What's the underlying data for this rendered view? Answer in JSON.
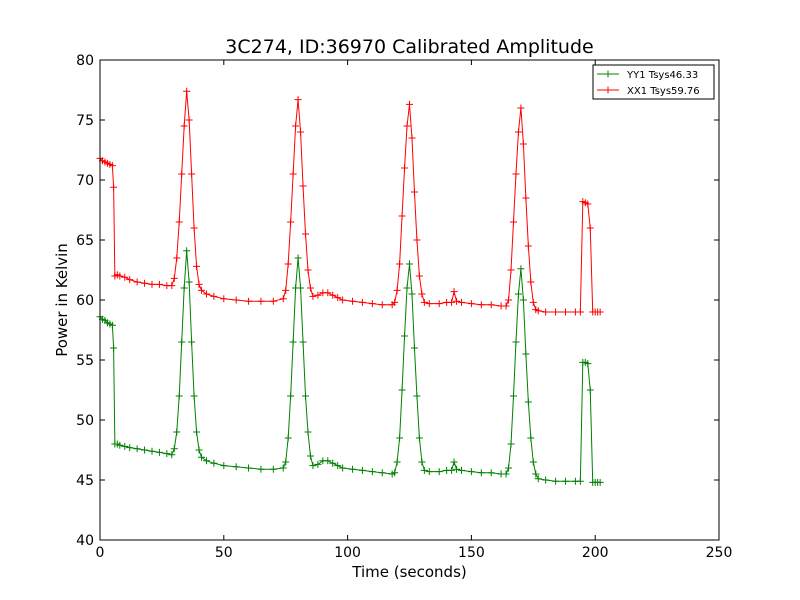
{
  "chart_data": {
    "type": "line",
    "title": "3C274, ID:36970 Calibrated Amplitude",
    "xlabel": "Time (seconds)",
    "ylabel": "Power in Kelvin",
    "xlim": [
      0,
      250
    ],
    "ylim": [
      40,
      80
    ],
    "xticks": [
      0,
      50,
      100,
      150,
      200,
      250
    ],
    "yticks": [
      40,
      45,
      50,
      55,
      60,
      65,
      70,
      75,
      80
    ],
    "grid": false,
    "marker": "+",
    "legend_position": "top-right",
    "series": [
      {
        "name": "YY1 Tsys46.33",
        "color": "#008000",
        "points": [
          [
            0,
            58.6
          ],
          [
            1,
            58.4
          ],
          [
            2,
            58.3
          ],
          [
            3,
            58.1
          ],
          [
            4,
            58.0
          ],
          [
            5,
            57.9
          ],
          [
            5.5,
            56.0
          ],
          [
            6,
            48.0
          ],
          [
            7,
            48.0
          ],
          [
            8,
            47.9
          ],
          [
            10,
            47.8
          ],
          [
            12,
            47.7
          ],
          [
            15,
            47.6
          ],
          [
            18,
            47.5
          ],
          [
            21,
            47.4
          ],
          [
            24,
            47.3
          ],
          [
            27,
            47.2
          ],
          [
            29,
            47.1
          ],
          [
            30,
            47.6
          ],
          [
            31,
            49.0
          ],
          [
            32,
            52.0
          ],
          [
            33,
            56.5
          ],
          [
            34,
            61.0
          ],
          [
            35,
            64.1
          ],
          [
            36,
            61.5
          ],
          [
            37,
            56.5
          ],
          [
            38,
            52.0
          ],
          [
            39,
            49.0
          ],
          [
            40,
            47.5
          ],
          [
            41,
            46.9
          ],
          [
            43,
            46.6
          ],
          [
            46,
            46.4
          ],
          [
            50,
            46.2
          ],
          [
            55,
            46.1
          ],
          [
            60,
            46.0
          ],
          [
            65,
            45.9
          ],
          [
            70,
            45.9
          ],
          [
            74,
            46.0
          ],
          [
            75,
            46.5
          ],
          [
            76,
            48.5
          ],
          [
            77,
            52.0
          ],
          [
            78,
            56.5
          ],
          [
            79,
            61.0
          ],
          [
            80,
            63.5
          ],
          [
            81,
            61.0
          ],
          [
            82,
            56.5
          ],
          [
            83,
            52.0
          ],
          [
            84,
            49.0
          ],
          [
            85,
            47.0
          ],
          [
            86,
            46.2
          ],
          [
            88,
            46.3
          ],
          [
            90,
            46.6
          ],
          [
            92,
            46.6
          ],
          [
            94,
            46.4
          ],
          [
            96,
            46.2
          ],
          [
            98,
            46.0
          ],
          [
            102,
            45.9
          ],
          [
            106,
            45.8
          ],
          [
            110,
            45.7
          ],
          [
            114,
            45.6
          ],
          [
            118,
            45.5
          ],
          [
            119,
            45.6
          ],
          [
            120,
            46.5
          ],
          [
            121,
            48.5
          ],
          [
            122,
            52.5
          ],
          [
            123,
            57.0
          ],
          [
            124,
            61.0
          ],
          [
            125,
            63.0
          ],
          [
            126,
            60.5
          ],
          [
            127,
            56.0
          ],
          [
            128,
            52.0
          ],
          [
            129,
            48.5
          ],
          [
            130,
            46.5
          ],
          [
            131,
            45.8
          ],
          [
            133,
            45.7
          ],
          [
            137,
            45.7
          ],
          [
            140,
            45.8
          ],
          [
            142,
            45.8
          ],
          [
            143,
            46.5
          ],
          [
            144,
            45.9
          ],
          [
            146,
            45.8
          ],
          [
            150,
            45.7
          ],
          [
            154,
            45.6
          ],
          [
            158,
            45.6
          ],
          [
            162,
            45.5
          ],
          [
            164,
            45.5
          ],
          [
            165,
            46.0
          ],
          [
            166,
            48.0
          ],
          [
            167,
            52.0
          ],
          [
            168,
            56.5
          ],
          [
            169,
            60.5
          ],
          [
            170,
            62.6
          ],
          [
            171,
            60.0
          ],
          [
            172,
            55.5
          ],
          [
            173,
            51.5
          ],
          [
            174,
            48.5
          ],
          [
            175,
            46.5
          ],
          [
            176,
            45.5
          ],
          [
            177,
            45.1
          ],
          [
            180,
            45.0
          ],
          [
            184,
            44.9
          ],
          [
            188,
            44.9
          ],
          [
            192,
            44.9
          ],
          [
            194,
            44.9
          ],
          [
            195,
            54.8
          ],
          [
            196,
            54.8
          ],
          [
            197,
            54.7
          ],
          [
            198,
            52.5
          ],
          [
            199,
            44.8
          ],
          [
            200,
            44.8
          ],
          [
            201,
            44.8
          ],
          [
            202,
            44.8
          ]
        ]
      },
      {
        "name": "XX1 Tsys59.76",
        "color": "#ff0000",
        "points": [
          [
            0,
            71.8
          ],
          [
            1,
            71.6
          ],
          [
            2,
            71.5
          ],
          [
            3,
            71.4
          ],
          [
            4,
            71.3
          ],
          [
            5,
            71.2
          ],
          [
            5.5,
            69.4
          ],
          [
            6,
            62.0
          ],
          [
            7,
            62.1
          ],
          [
            8,
            62.0
          ],
          [
            10,
            61.9
          ],
          [
            12,
            61.7
          ],
          [
            15,
            61.5
          ],
          [
            18,
            61.4
          ],
          [
            21,
            61.3
          ],
          [
            24,
            61.3
          ],
          [
            27,
            61.2
          ],
          [
            29,
            61.2
          ],
          [
            30,
            61.8
          ],
          [
            31,
            63.5
          ],
          [
            32,
            66.5
          ],
          [
            33,
            70.5
          ],
          [
            34,
            74.5
          ],
          [
            35,
            77.4
          ],
          [
            36,
            75.0
          ],
          [
            37,
            70.5
          ],
          [
            38,
            66.0
          ],
          [
            39,
            62.8
          ],
          [
            40,
            61.3
          ],
          [
            41,
            60.8
          ],
          [
            43,
            60.5
          ],
          [
            46,
            60.3
          ],
          [
            50,
            60.1
          ],
          [
            55,
            60.0
          ],
          [
            60,
            59.9
          ],
          [
            65,
            59.9
          ],
          [
            70,
            59.9
          ],
          [
            74,
            60.1
          ],
          [
            75,
            60.8
          ],
          [
            76,
            63.0
          ],
          [
            77,
            66.5
          ],
          [
            78,
            70.5
          ],
          [
            79,
            74.5
          ],
          [
            80,
            76.7
          ],
          [
            81,
            74.0
          ],
          [
            82,
            69.5
          ],
          [
            83,
            65.5
          ],
          [
            84,
            62.5
          ],
          [
            85,
            61.0
          ],
          [
            86,
            60.3
          ],
          [
            88,
            60.4
          ],
          [
            90,
            60.6
          ],
          [
            92,
            60.6
          ],
          [
            94,
            60.4
          ],
          [
            96,
            60.2
          ],
          [
            98,
            60.0
          ],
          [
            102,
            59.9
          ],
          [
            106,
            59.8
          ],
          [
            110,
            59.7
          ],
          [
            114,
            59.6
          ],
          [
            118,
            59.6
          ],
          [
            119,
            59.8
          ],
          [
            120,
            60.8
          ],
          [
            121,
            63.0
          ],
          [
            122,
            67.0
          ],
          [
            123,
            71.0
          ],
          [
            124,
            74.5
          ],
          [
            125,
            76.3
          ],
          [
            126,
            73.5
          ],
          [
            127,
            69.0
          ],
          [
            128,
            65.0
          ],
          [
            129,
            62.0
          ],
          [
            130,
            60.5
          ],
          [
            131,
            59.8
          ],
          [
            133,
            59.7
          ],
          [
            137,
            59.7
          ],
          [
            140,
            59.8
          ],
          [
            142,
            59.8
          ],
          [
            143,
            60.7
          ],
          [
            144,
            59.9
          ],
          [
            146,
            59.8
          ],
          [
            150,
            59.7
          ],
          [
            154,
            59.6
          ],
          [
            158,
            59.6
          ],
          [
            162,
            59.5
          ],
          [
            164,
            59.5
          ],
          [
            165,
            60.0
          ],
          [
            166,
            62.5
          ],
          [
            167,
            66.5
          ],
          [
            168,
            70.5
          ],
          [
            169,
            74.0
          ],
          [
            170,
            76.0
          ],
          [
            171,
            73.0
          ],
          [
            172,
            68.5
          ],
          [
            173,
            64.5
          ],
          [
            174,
            61.5
          ],
          [
            175,
            59.8
          ],
          [
            176,
            59.2
          ],
          [
            177,
            59.1
          ],
          [
            180,
            59.0
          ],
          [
            184,
            59.0
          ],
          [
            188,
            59.0
          ],
          [
            192,
            59.0
          ],
          [
            194,
            59.0
          ],
          [
            195,
            68.2
          ],
          [
            196,
            68.1
          ],
          [
            197,
            68.0
          ],
          [
            198,
            66.0
          ],
          [
            199,
            59.0
          ],
          [
            200,
            59.0
          ],
          [
            201,
            59.0
          ],
          [
            202,
            59.0
          ]
        ]
      }
    ]
  }
}
